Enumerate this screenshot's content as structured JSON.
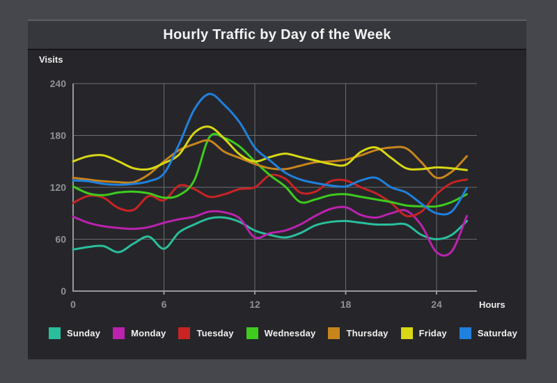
{
  "window": {
    "title": "Hourly Traffic by Day of the Week"
  },
  "theme": {
    "frame_bg": "#45474d",
    "titlebar_bg": "#36373c",
    "chart_bg": "#26262a",
    "grid_color": "#6b6d71",
    "axis_color": "#97999e",
    "tick_label_color": "#8f9196",
    "text_color": "#f2f2f2"
  },
  "chart_data": {
    "type": "line",
    "title": "Hourly Traffic by Day of the Week",
    "xlabel": "Hours",
    "ylabel": "Visits",
    "xlim": [
      0,
      26
    ],
    "ylim": [
      0,
      240
    ],
    "x_ticks": [
      0,
      6,
      12,
      18,
      24
    ],
    "y_ticks": [
      0,
      60,
      120,
      180,
      240
    ],
    "grid": true,
    "legend_position": "bottom",
    "x": [
      0,
      1,
      2,
      3,
      4,
      5,
      6,
      7,
      8,
      9,
      10,
      11,
      12,
      13,
      14,
      15,
      16,
      17,
      18,
      19,
      20,
      21,
      22,
      23,
      24,
      25,
      26
    ],
    "series": [
      {
        "name": "Sunday",
        "color": "#29bf9c",
        "values": [
          48,
          51,
          52,
          45,
          55,
          63,
          49,
          68,
          77,
          84,
          85,
          80,
          70,
          65,
          62,
          67,
          76,
          80,
          81,
          79,
          77,
          77,
          77,
          65,
          60,
          65,
          81
        ]
      },
      {
        "name": "Monday",
        "color": "#bb22ae",
        "values": [
          86,
          79,
          75,
          73,
          72,
          74,
          79,
          83,
          86,
          92,
          91,
          84,
          62,
          67,
          70,
          77,
          87,
          95,
          97,
          88,
          85,
          90,
          93,
          76,
          45,
          46,
          87
        ]
      },
      {
        "name": "Tuesday",
        "color": "#c82424",
        "values": [
          102,
          110,
          108,
          96,
          94,
          110,
          105,
          122,
          118,
          109,
          112,
          118,
          120,
          134,
          130,
          114,
          115,
          127,
          128,
          120,
          113,
          102,
          87,
          92,
          112,
          125,
          129
        ]
      },
      {
        "name": "Wednesday",
        "color": "#3ecc1e",
        "values": [
          121,
          113,
          111,
          114,
          115,
          113,
          108,
          111,
          128,
          178,
          177,
          167,
          150,
          134,
          121,
          103,
          106,
          111,
          112,
          109,
          106,
          103,
          99,
          98,
          98,
          103,
          112
        ]
      },
      {
        "name": "Thursday",
        "color": "#c8851c",
        "values": [
          131,
          129,
          127,
          126,
          126,
          135,
          150,
          163,
          170,
          174,
          161,
          154,
          147,
          142,
          141,
          145,
          149,
          150,
          152,
          157,
          163,
          166,
          165,
          149,
          131,
          138,
          156
        ]
      },
      {
        "name": "Friday",
        "color": "#d8d814",
        "values": [
          150,
          156,
          157,
          150,
          142,
          141,
          148,
          158,
          183,
          190,
          176,
          158,
          150,
          155,
          159,
          155,
          151,
          147,
          146,
          161,
          166,
          154,
          142,
          141,
          143,
          142,
          140
        ]
      },
      {
        "name": "Saturday",
        "color": "#2080dd",
        "values": [
          128,
          127,
          124,
          123,
          124,
          127,
          136,
          170,
          210,
          228,
          215,
          195,
          166,
          151,
          137,
          129,
          125,
          122,
          121,
          128,
          131,
          120,
          114,
          101,
          90,
          92,
          119
        ]
      }
    ]
  }
}
